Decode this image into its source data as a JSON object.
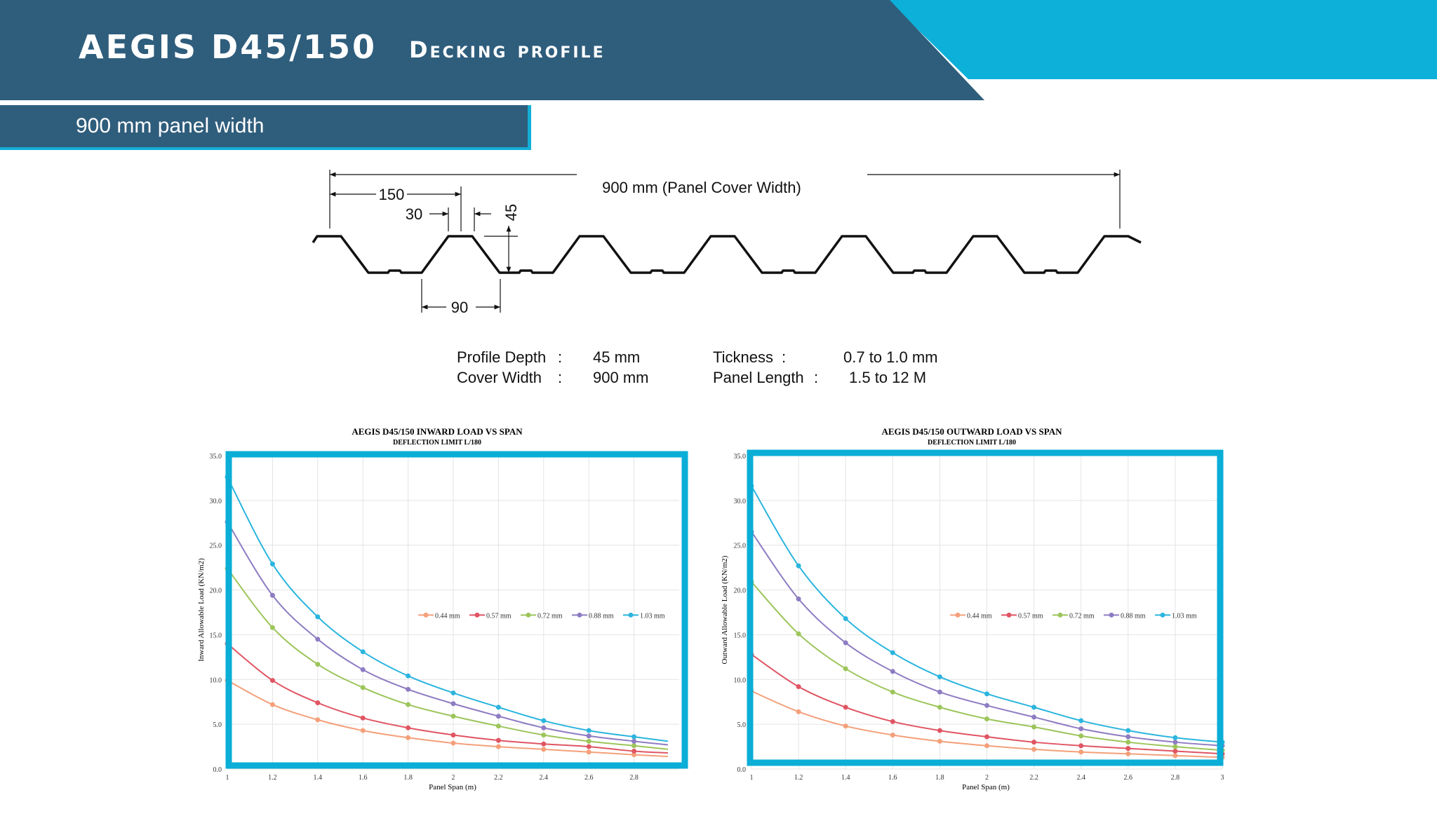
{
  "header": {
    "title": "AEGIS D45/150",
    "subtitle": "Decking profile",
    "panel_width": "900 mm panel width"
  },
  "colors": {
    "dark_blue": "#2f5d7c",
    "cyan": "#0cb0d8",
    "frame": "#0aaed6"
  },
  "profile": {
    "cover_width_label": "900 mm (Panel Cover Width)",
    "pitch_label": "150",
    "top_label": "30",
    "depth_label": "45",
    "bottom_label": "90"
  },
  "specs": {
    "profile_depth_label": "Profile Depth",
    "profile_depth_value": "45 mm",
    "cover_width_label": "Cover Width",
    "cover_width_value": "900 mm",
    "thickness_label": "Tickness",
    "thickness_value": "0.7 to 1.0 mm",
    "panel_length_label": "Panel Length",
    "panel_length_value": "1.5 to 12 M",
    "separator": ":"
  },
  "chart_data": [
    {
      "type": "line",
      "title": "AEGIS D45/150 INWARD LOAD VS SPAN",
      "subtitle": "DEFLECTION LIMIT L/180",
      "xlabel": "Panel Span (m)",
      "ylabel": "Inward Allowable Load (KN/m2)",
      "xlim": [
        1,
        3
      ],
      "ylim": [
        0,
        35
      ],
      "xticks": [
        "1",
        "1.2",
        "1.4",
        "1.6",
        "1.8",
        "2",
        "2.2",
        "2.4",
        "2.6",
        "2.8"
      ],
      "yticks": [
        "0.0",
        "5.0",
        "10.0",
        "15.0",
        "20.0",
        "25.0",
        "30.0",
        "35.0"
      ],
      "grid": true,
      "legend_position": "center-right",
      "x": [
        1,
        1.2,
        1.4,
        1.6,
        1.8,
        2,
        2.2,
        2.4,
        2.6,
        2.8,
        2.95
      ],
      "series": [
        {
          "name": "0.44 mm",
          "color": "#f4a07a",
          "values": [
            9.9,
            7.2,
            5.5,
            4.3,
            3.5,
            2.9,
            2.5,
            2.2,
            1.9,
            1.6,
            1.4
          ]
        },
        {
          "name": "0.57 mm",
          "color": "#e05563",
          "values": [
            14.0,
            9.9,
            7.4,
            5.7,
            4.6,
            3.8,
            3.2,
            2.8,
            2.5,
            2.0,
            1.8
          ]
        },
        {
          "name": "0.72 mm",
          "color": "#9cc55a",
          "values": [
            22.4,
            15.8,
            11.7,
            9.1,
            7.2,
            5.9,
            4.8,
            3.8,
            3.1,
            2.6,
            2.2
          ]
        },
        {
          "name": "0.88 mm",
          "color": "#8e7cc3",
          "values": [
            27.6,
            19.4,
            14.5,
            11.1,
            8.9,
            7.3,
            5.9,
            4.6,
            3.7,
            3.1,
            2.7
          ]
        },
        {
          "name": "1.03 mm",
          "color": "#2bb5de",
          "values": [
            32.6,
            22.9,
            17.0,
            13.1,
            10.4,
            8.5,
            6.9,
            5.4,
            4.3,
            3.6,
            3.1
          ]
        }
      ]
    },
    {
      "type": "line",
      "title": "AEGIS D45/150 OUTWARD LOAD VS SPAN",
      "subtitle": "DEFLECTION LIMIT L/180",
      "xlabel": "Panel Span (m)",
      "ylabel": "Outward Allowable Load (KN/m2)",
      "xlim": [
        1,
        3
      ],
      "ylim": [
        0,
        35
      ],
      "xticks": [
        "1",
        "1.2",
        "1.4",
        "1.6",
        "1.8",
        "2",
        "2.2",
        "2.4",
        "2.6",
        "2.8",
        "3"
      ],
      "yticks": [
        "0.0",
        "5.0",
        "10.0",
        "15.0",
        "20.0",
        "25.0",
        "30.0",
        "35.0"
      ],
      "grid": true,
      "legend_position": "center-right",
      "x": [
        1,
        1.2,
        1.4,
        1.6,
        1.8,
        2,
        2.2,
        2.4,
        2.6,
        2.8,
        3
      ],
      "series": [
        {
          "name": "0.44 mm",
          "color": "#f4a07a",
          "values": [
            8.7,
            6.4,
            4.8,
            3.8,
            3.1,
            2.6,
            2.2,
            1.9,
            1.7,
            1.5,
            1.3
          ]
        },
        {
          "name": "0.57 mm",
          "color": "#e05563",
          "values": [
            12.8,
            9.2,
            6.9,
            5.3,
            4.3,
            3.6,
            3.0,
            2.6,
            2.3,
            2.0,
            1.7
          ]
        },
        {
          "name": "0.72 mm",
          "color": "#9cc55a",
          "values": [
            20.9,
            15.1,
            11.2,
            8.6,
            6.9,
            5.6,
            4.7,
            3.7,
            3.0,
            2.5,
            2.1
          ]
        },
        {
          "name": "0.88 mm",
          "color": "#8e7cc3",
          "values": [
            26.5,
            19.0,
            14.1,
            10.9,
            8.6,
            7.1,
            5.8,
            4.5,
            3.6,
            3.0,
            2.6
          ]
        },
        {
          "name": "1.03 mm",
          "color": "#2bb5de",
          "values": [
            31.6,
            22.7,
            16.8,
            13.0,
            10.3,
            8.4,
            6.9,
            5.4,
            4.3,
            3.5,
            3.0
          ]
        }
      ]
    }
  ]
}
